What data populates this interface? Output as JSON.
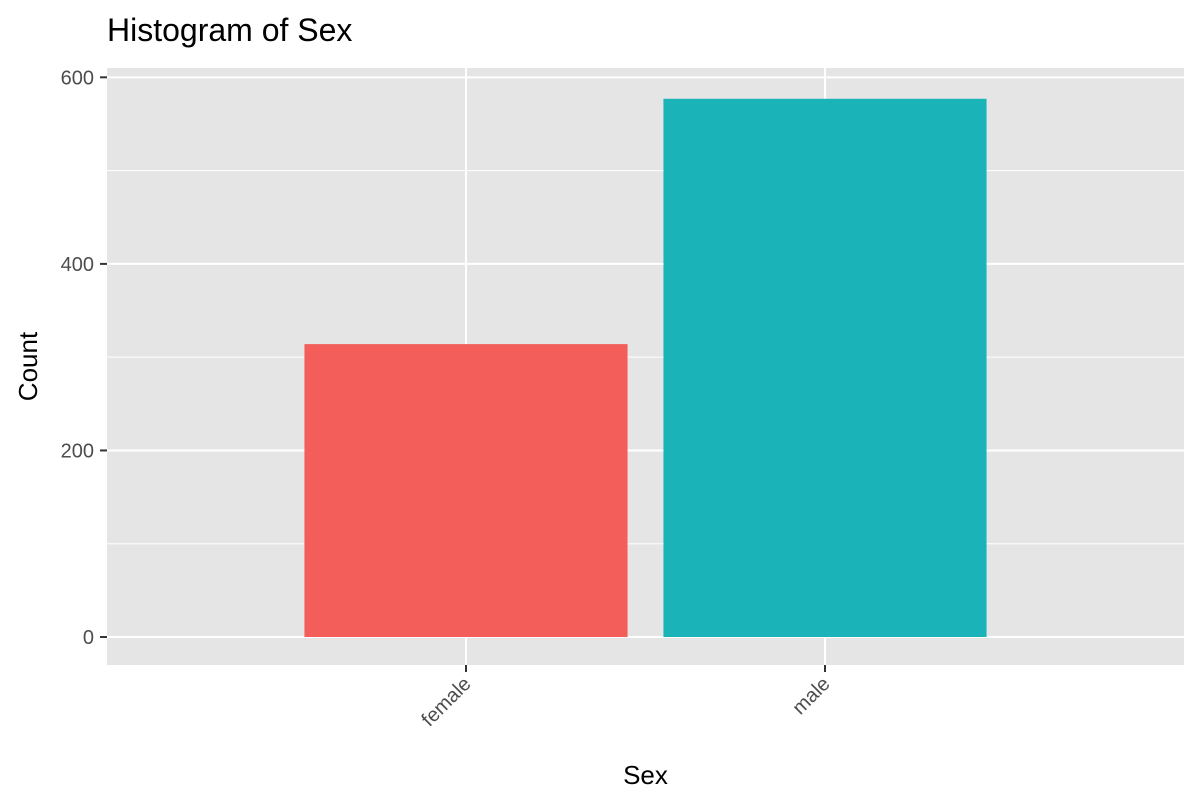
{
  "chart_data": {
    "type": "bar",
    "title": "Histogram of Sex",
    "xlabel": "Sex",
    "ylabel": "Count",
    "categories": [
      "female",
      "male"
    ],
    "values": [
      314,
      577
    ],
    "colors": [
      "#F35E5A",
      "#19B3B8"
    ],
    "ylim": [
      -30,
      610
    ],
    "yticks": [
      0,
      200,
      400,
      600
    ],
    "ytick_labels": [
      "0",
      "200",
      "400",
      "600"
    ],
    "grid": true,
    "legend": "none",
    "x_tick_rotation_deg": -45,
    "panel_background": "#E5E5E5",
    "grid_color": "#FFFFFF"
  }
}
